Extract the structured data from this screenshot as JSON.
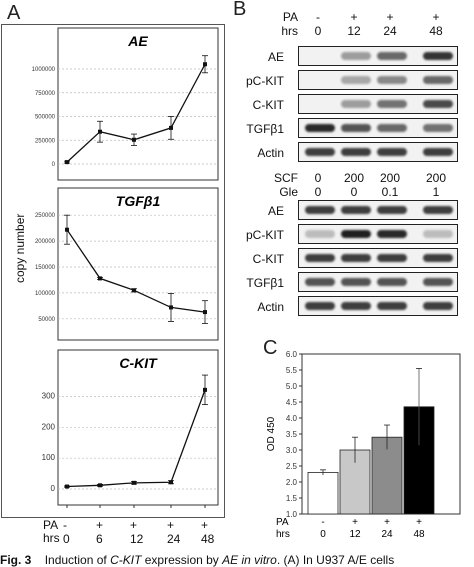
{
  "panels": {
    "a": "A",
    "b": "B",
    "c": "C"
  },
  "panel_a": {
    "ylabel": "copy number",
    "x_categories": [
      "0",
      "6",
      "12",
      "24",
      "48"
    ],
    "treatment_row": {
      "label": "PA",
      "values": [
        "-",
        "+",
        "+",
        "+",
        "+"
      ]
    },
    "time_row": {
      "label": "hrs",
      "values": [
        "0",
        "6",
        "12",
        "24",
        "48"
      ]
    }
  },
  "panel_b": {
    "top": {
      "header_rows": [
        {
          "label": "PA",
          "values": [
            "-",
            "+",
            "+",
            "+"
          ]
        },
        {
          "label": "hrs",
          "values": [
            "0",
            "12",
            "24",
            "48"
          ]
        }
      ],
      "blots": [
        "AE",
        "pC-KIT",
        "C-KIT",
        "TGFβ1",
        "Actin"
      ],
      "intensities": [
        [
          0.0,
          0.35,
          0.6,
          0.85
        ],
        [
          0.0,
          0.3,
          0.45,
          0.6
        ],
        [
          0.0,
          0.35,
          0.55,
          0.75
        ],
        [
          0.9,
          0.7,
          0.6,
          0.55
        ],
        [
          0.8,
          0.8,
          0.8,
          0.8
        ]
      ]
    },
    "bottom": {
      "header_rows": [
        {
          "label": "SCF",
          "values": [
            "0",
            "200",
            "200",
            "200"
          ]
        },
        {
          "label": "Gle",
          "values": [
            "0",
            "0",
            "0.1",
            "1"
          ]
        }
      ],
      "blots": [
        "AE",
        "pC-KIT",
        "C-KIT",
        "TGFβ1",
        "Actin"
      ],
      "intensities": [
        [
          0.8,
          0.8,
          0.8,
          0.8
        ],
        [
          0.2,
          0.95,
          0.9,
          0.2
        ],
        [
          0.8,
          0.8,
          0.8,
          0.8
        ],
        [
          0.7,
          0.7,
          0.7,
          0.7
        ],
        [
          0.8,
          0.8,
          0.8,
          0.8
        ]
      ]
    }
  },
  "chart_data": [
    {
      "type": "line",
      "title": "AE",
      "x": [
        "0",
        "6",
        "12",
        "24",
        "48"
      ],
      "values": [
        20000,
        340000,
        255000,
        380000,
        1050000
      ],
      "errors": [
        10000,
        110000,
        60000,
        120000,
        90000
      ],
      "ylim": [
        0,
        1200000
      ],
      "yticks": [
        "0",
        "250000",
        "500000",
        "750000",
        "1000000"
      ],
      "grid": true
    },
    {
      "type": "line",
      "title": "TGFβ1",
      "x": [
        "0",
        "6",
        "12",
        "24",
        "48"
      ],
      "values": [
        222000,
        128000,
        105000,
        72000,
        63000
      ],
      "errors": [
        28000,
        2000,
        3000,
        27000,
        22000
      ],
      "ylim": [
        40000,
        260000
      ],
      "yticks": [
        "50000",
        "100000",
        "150000",
        "200000",
        "250000"
      ],
      "grid": true
    },
    {
      "type": "line",
      "title": "C-KIT",
      "x": [
        "0",
        "6",
        "12",
        "24",
        "48"
      ],
      "values": [
        8,
        12,
        20,
        22,
        322
      ],
      "errors": [
        2,
        3,
        4,
        5,
        48
      ],
      "ylim": [
        0,
        380
      ],
      "yticks": [
        "0",
        "100",
        "200",
        "300"
      ],
      "grid": true
    },
    {
      "type": "bar",
      "ylabel": "OD 450",
      "categories": [
        "0",
        "12",
        "24",
        "48"
      ],
      "values": [
        2.3,
        3.0,
        3.4,
        4.35
      ],
      "errors": [
        0.08,
        0.4,
        0.38,
        1.2
      ],
      "colors": [
        "#ffffff",
        "#c8c8c8",
        "#8c8c8c",
        "#000000"
      ],
      "ylim": [
        1.0,
        6.0
      ],
      "yticks": [
        "1.0",
        "1.5",
        "2.0",
        "2.5",
        "3.0",
        "3.5",
        "4.0",
        "4.5",
        "5.0",
        "5.5",
        "6.0"
      ],
      "treatment_row": {
        "label": "PA",
        "values": [
          "-",
          "+",
          "+",
          "+"
        ]
      },
      "time_row": {
        "label": "hrs",
        "values": [
          "0",
          "12",
          "24",
          "48"
        ]
      }
    }
  ],
  "caption": {
    "prefix": "Fig. 3",
    "text1": "Induction of ",
    "gene": "C-KIT",
    "text2": " expression by ",
    "agent": "AE in vitro",
    "text3": ". (A) In U937 A/E cells"
  }
}
